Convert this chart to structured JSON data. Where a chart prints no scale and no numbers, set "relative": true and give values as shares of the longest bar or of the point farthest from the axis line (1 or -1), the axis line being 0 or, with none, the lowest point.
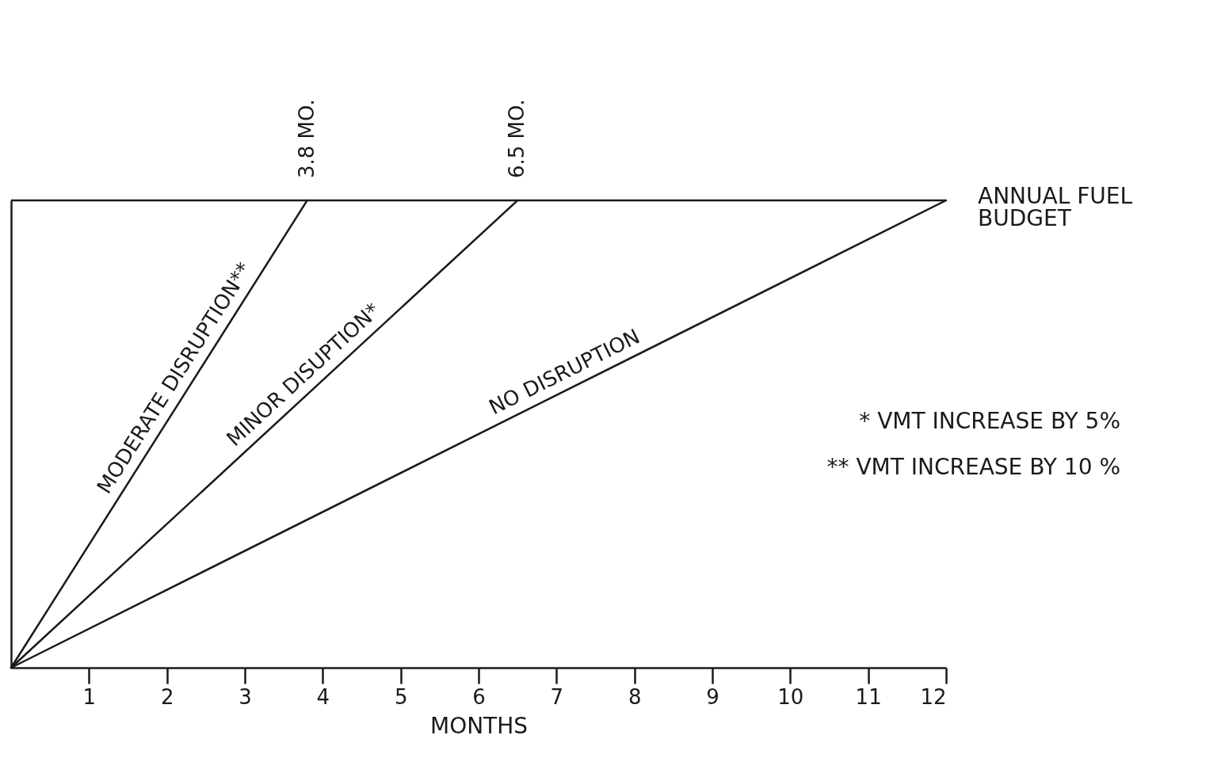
{
  "chart_data": {
    "type": "line",
    "relative": true,
    "xlabel": "MONTHS",
    "xlim": [
      0,
      12
    ],
    "xticks": [
      1,
      2,
      3,
      4,
      5,
      6,
      7,
      8,
      9,
      10,
      11,
      12
    ],
    "tick_labels": "x",
    "grid": false,
    "marker": "none",
    "line_style": "solid",
    "series": [
      {
        "name": "MODERATE DISRUPTION**",
        "color": "#1a1a1a",
        "x": [
          0,
          3.8
        ],
        "values": [
          0,
          1
        ]
      },
      {
        "name": "MINOR DISUPTION*",
        "color": "#1a1a1a",
        "x": [
          0,
          6.5
        ],
        "values": [
          0,
          1
        ]
      },
      {
        "name": "NO DISRUPTION",
        "color": "#1a1a1a",
        "x": [
          0,
          12
        ],
        "values": [
          0,
          1
        ]
      }
    ],
    "ref_lines": [
      {
        "axis": "y",
        "value": 1,
        "label": "ANNUAL FUEL BUDGET",
        "color": "#1a1a1a"
      }
    ],
    "annotations": [
      {
        "text": "3.8 MO.",
        "x": 3.8,
        "y": 1
      },
      {
        "text": "6.5 MO.",
        "x": 6.5,
        "y": 1
      },
      "* VMT INCREASE BY 5%",
      "** VMT INCREASE BY 10 %"
    ]
  }
}
